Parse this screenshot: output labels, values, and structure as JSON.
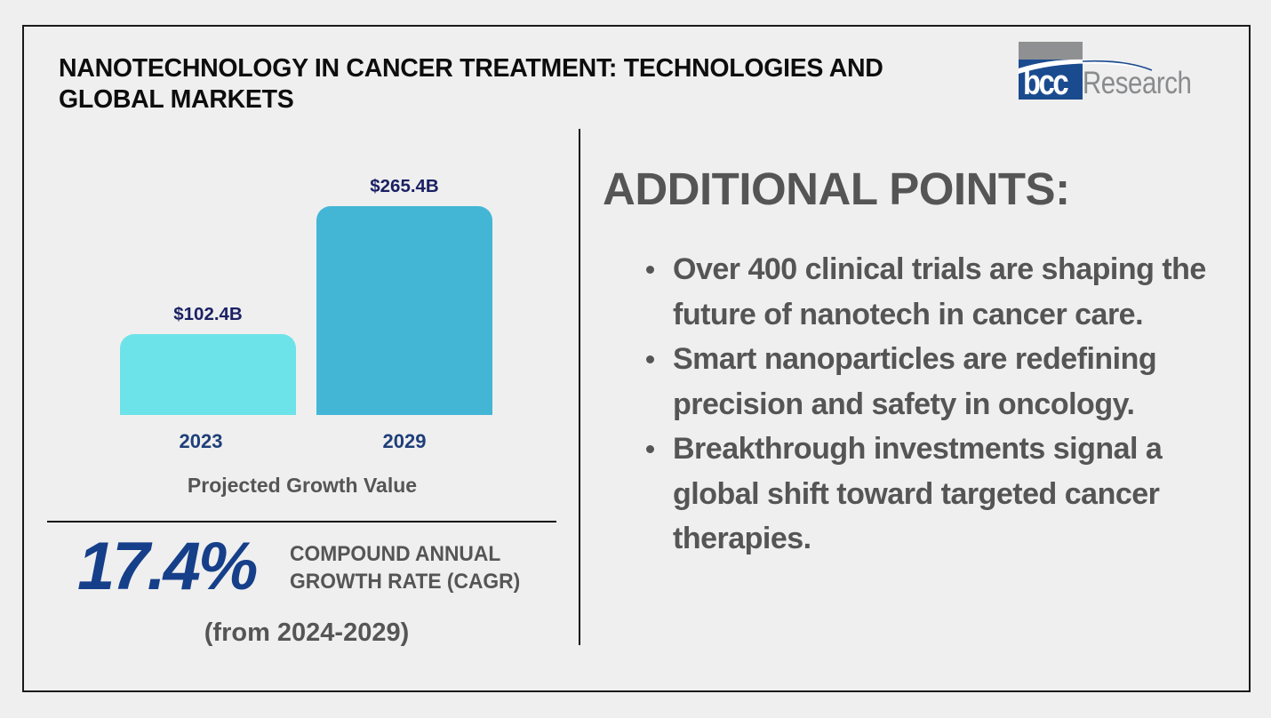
{
  "title": "NANOTECHNOLOGY IN CANCER TREATMENT: TECHNOLOGIES AND GLOBAL MARKETS",
  "logo": {
    "mark": "bcc",
    "wordmark": "Research",
    "icon": "bcc-research-logo"
  },
  "colors": {
    "bar_2023": "#6ce3e8",
    "bar_2029": "#43b6d6",
    "value_label": "#1b2163",
    "year_label": "#1f3f7a",
    "cagr": "#163f8a",
    "body_text": "#555555"
  },
  "chart_data": {
    "type": "bar",
    "title": "",
    "xlabel": "Projected Growth Value",
    "ylabel": "",
    "categories": [
      "2023",
      "2029"
    ],
    "values": [
      102.4,
      265.4
    ],
    "value_labels": [
      "$102.4B",
      "$265.4B"
    ],
    "unit": "USD billions",
    "ylim": [
      0,
      300
    ],
    "grid": false,
    "legend": "none"
  },
  "cagr": {
    "value": "17.4%",
    "label_line1": "COMPOUND ANNUAL",
    "label_line2": "GROWTH RATE (CAGR)",
    "period": "(from 2024-2029)"
  },
  "additional_points": {
    "heading": "ADDITIONAL POINTS:",
    "items": [
      "Over 400 clinical trials are shaping the future of nanotech in cancer care.",
      "Smart nanoparticles are redefining precision and safety in oncology.",
      "Breakthrough investments signal a global shift toward targeted cancer therapies."
    ]
  }
}
